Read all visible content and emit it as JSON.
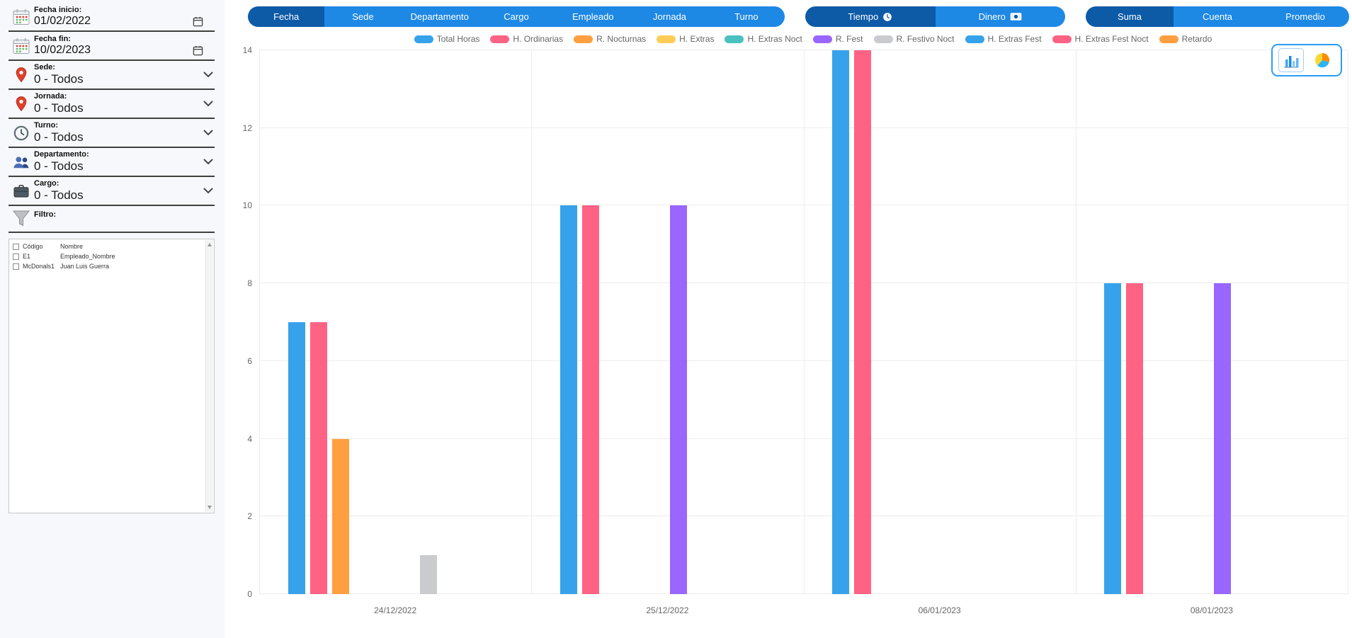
{
  "colors": {
    "accent": "#1e88e5",
    "accent_active": "#0d5aa7",
    "toggle_border": "#2a9df4"
  },
  "sidebar": {
    "fecha_inicio": {
      "label": "Fecha inicio:",
      "value": "01/02/2022",
      "icon": "calendar-icon"
    },
    "fecha_fin": {
      "label": "Fecha fin:",
      "value": "10/02/2023",
      "icon": "calendar-icon"
    },
    "selects": [
      {
        "id": "sede",
        "label": "Sede:",
        "value": "0 - Todos",
        "icon": "map-pin-icon"
      },
      {
        "id": "jornada",
        "label": "Jornada:",
        "value": "0 - Todos",
        "icon": "map-pin-icon"
      },
      {
        "id": "turno",
        "label": "Turno:",
        "value": "0 - Todos",
        "icon": "clock-icon"
      },
      {
        "id": "departamento",
        "label": "Departamento:",
        "value": "0 - Todos",
        "icon": "people-icon"
      },
      {
        "id": "cargo",
        "label": "Cargo:",
        "value": "0 - Todos",
        "icon": "briefcase-icon"
      }
    ],
    "filtro": {
      "label": "Filtro:",
      "icon": "funnel-icon"
    },
    "employee_list": {
      "header": {
        "col1": "Código",
        "col2": "Nombre"
      },
      "rows": [
        {
          "col1": "E1",
          "col2": "Empleado_Nombre"
        },
        {
          "col1": "McDonals1",
          "col2": "Juan Luis Guerra"
        }
      ]
    }
  },
  "toolbar": {
    "group_by": [
      {
        "label": "Fecha",
        "active": true
      },
      {
        "label": "Sede",
        "active": false
      },
      {
        "label": "Departamento",
        "active": false
      },
      {
        "label": "Cargo",
        "active": false
      },
      {
        "label": "Empleado",
        "active": false
      },
      {
        "label": "Jornada",
        "active": false
      },
      {
        "label": "Turno",
        "active": false
      }
    ],
    "unit": [
      {
        "label": "Tiempo",
        "active": true,
        "icon": "clock-white-icon"
      },
      {
        "label": "Dinero",
        "active": false,
        "icon": "banknote-icon"
      }
    ],
    "aggregate": [
      {
        "label": "Suma",
        "active": true
      },
      {
        "label": "Cuenta",
        "active": false
      },
      {
        "label": "Promedio",
        "active": false
      }
    ]
  },
  "chart_view_toggle": [
    {
      "name": "bar-chart-view-button",
      "icon": "bar-chart-icon",
      "active": true
    },
    {
      "name": "pie-chart-view-button",
      "icon": "pie-chart-icon",
      "active": false
    }
  ],
  "chart_data": {
    "type": "bar",
    "title": "",
    "xlabel": "",
    "ylabel": "",
    "categories": [
      "24/12/2022",
      "25/12/2022",
      "06/01/2023",
      "08/01/2023"
    ],
    "series": [
      {
        "name": "Total Horas",
        "color": "#36A2EB",
        "values": [
          7,
          10,
          14,
          8
        ]
      },
      {
        "name": "H. Ordinarias",
        "color": "#FF6384",
        "values": [
          7,
          10,
          14,
          8
        ]
      },
      {
        "name": "R. Nocturnas",
        "color": "#FF9F40",
        "values": [
          4,
          0,
          0,
          0
        ]
      },
      {
        "name": "H. Extras",
        "color": "#FFCD56",
        "values": [
          0,
          0,
          0,
          0
        ]
      },
      {
        "name": "H. Extras Noct",
        "color": "#4BC0C0",
        "values": [
          0,
          0,
          0,
          0
        ]
      },
      {
        "name": "R. Fest",
        "color": "#9966FF",
        "values": [
          0,
          10,
          0,
          8
        ]
      },
      {
        "name": "R. Festivo Noct",
        "color": "#C9CBCF",
        "values": [
          1,
          0,
          0,
          0
        ]
      },
      {
        "name": "H. Extras Fest",
        "color": "#36A2EB",
        "values": [
          0,
          0,
          0,
          0
        ]
      },
      {
        "name": "H. Extras Fest Noct",
        "color": "#FF6384",
        "values": [
          0,
          0,
          0,
          0
        ]
      },
      {
        "name": "Retardo",
        "color": "#FF9F40",
        "values": [
          0,
          0,
          0,
          0
        ]
      }
    ],
    "ylim": [
      0,
      14
    ],
    "yticks": [
      0,
      2,
      4,
      6,
      8,
      10,
      12,
      14
    ],
    "grid": true,
    "legend_position": "top"
  }
}
